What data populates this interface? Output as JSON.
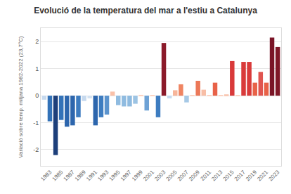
{
  "chart_data": {
    "type": "bar",
    "title": "Evolució de la temperatura del mar a l'estiu a Catalunya",
    "y_label": "Variació sobre temp. mitjana 1982-2022 (23,7°C)",
    "x": [
      1982,
      1983,
      1984,
      1985,
      1986,
      1987,
      1988,
      1989,
      1990,
      1991,
      1992,
      1993,
      1994,
      1995,
      1996,
      1997,
      1998,
      1999,
      2000,
      2001,
      2002,
      2003,
      2004,
      2005,
      2006,
      2007,
      2008,
      2009,
      2010,
      2011,
      2012,
      2013,
      2014,
      2015,
      2016,
      2017,
      2018,
      2019,
      2020,
      2021,
      2022,
      2023
    ],
    "values": [
      -0.15,
      -0.95,
      -2.2,
      -0.9,
      -1.15,
      -1.1,
      -0.8,
      -0.2,
      -0.1,
      -1.1,
      -0.8,
      -0.7,
      0.15,
      -0.35,
      -0.4,
      -0.4,
      -0.3,
      0.03,
      -0.55,
      0.01,
      -0.8,
      1.95,
      -0.1,
      0.2,
      0.42,
      -0.25,
      0.01,
      0.55,
      0.22,
      0.02,
      0.48,
      0.01,
      0.05,
      1.28,
      0.02,
      1.25,
      1.25,
      0.48,
      0.88,
      0.48,
      2.15,
      1.8
    ],
    "colors": [
      "#c6d9ee",
      "#3372b8",
      "#1d3f7a",
      "#3372b8",
      "#2d66ad",
      "#2d66ad",
      "#3d7cc0",
      "#c6d9ee",
      "#d3e2f1",
      "#2d66ad",
      "#3d7cc0",
      "#5b93cd",
      "#f9c1a9",
      "#8fbbe0",
      "#8fbbe0",
      "#8fbbe0",
      "#9cc3e3",
      "#fbd3c2",
      "#6ea2d5",
      "#fbd3c2",
      "#3d7cc0",
      "#8b1a2a",
      "#c6d9ee",
      "#f7b59a",
      "#ef8462",
      "#a6c9e6",
      "#fbd3c2",
      "#ec7858",
      "#f8bea6",
      "#fbd3c2",
      "#e86248",
      "#fbd3c2",
      "#f9c8b3",
      "#d93a3a",
      "#fbd3c2",
      "#d93a3a",
      "#d93a3a",
      "#e86248",
      "#e05550",
      "#e86248",
      "#7a1426",
      "#7f1727"
    ],
    "xlim": [
      1981.4,
      2023.6
    ],
    "xticks": [
      1983,
      1985,
      1987,
      1989,
      1991,
      1993,
      1995,
      1997,
      1999,
      2001,
      2003,
      2005,
      2007,
      2009,
      2011,
      2013,
      2015,
      2017,
      2019,
      2021,
      2023
    ],
    "ylim": [
      -2.6,
      2.5
    ],
    "yticks": [
      -2,
      -1,
      0,
      1,
      2
    ],
    "grid": true
  }
}
